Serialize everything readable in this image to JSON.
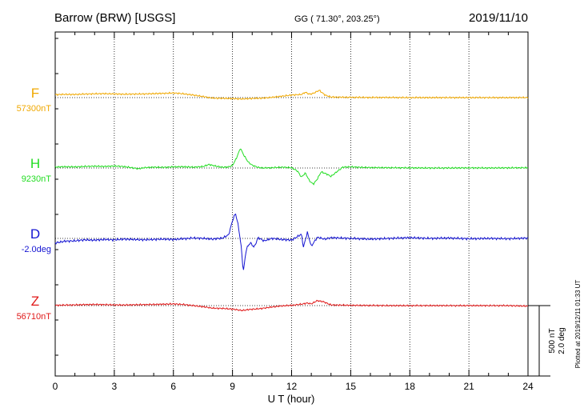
{
  "header": {
    "station": "Barrow (BRW)  [USGS]",
    "coords": "GG ( 71.30°, 203.25°)",
    "date": "2019/11/10"
  },
  "footer": {
    "plotted": "Plotted at 2019/12/11 01:33 UT",
    "scale_nt": "500 nT",
    "scale_deg": "2.0 deg"
  },
  "chart_data": {
    "type": "line",
    "xlabel": "U T (hour)",
    "xlim": [
      0,
      24
    ],
    "xticks": [
      0,
      3,
      6,
      9,
      12,
      15,
      18,
      21,
      24
    ],
    "scale": {
      "nT_per_bar": 500,
      "deg_per_bar": 2.0
    },
    "grid": true,
    "colors": {
      "F": "#f0a800",
      "H": "#22dd22",
      "D": "#1414d2",
      "Z": "#e01818"
    },
    "series": [
      {
        "name": "F",
        "baseline_label": "57300nT",
        "unit": "nT",
        "baseline": 57300,
        "color": "#f0a800",
        "points": [
          [
            0,
            57321
          ],
          [
            0.5,
            57323
          ],
          [
            1,
            57322
          ],
          [
            1.5,
            57325
          ],
          [
            2,
            57327
          ],
          [
            2.5,
            57328
          ],
          [
            3,
            57326
          ],
          [
            3.5,
            57324
          ],
          [
            4,
            57325
          ],
          [
            4.5,
            57326
          ],
          [
            5,
            57328
          ],
          [
            5.5,
            57330
          ],
          [
            6,
            57333
          ],
          [
            6.5,
            57327
          ],
          [
            7,
            57318
          ],
          [
            7.5,
            57308
          ],
          [
            8,
            57296
          ],
          [
            8.5,
            57295
          ],
          [
            9,
            57293
          ],
          [
            9.5,
            57290
          ],
          [
            10,
            57294
          ],
          [
            10.5,
            57296
          ],
          [
            11,
            57302
          ],
          [
            11.5,
            57310
          ],
          [
            12,
            57318
          ],
          [
            12.5,
            57322
          ],
          [
            12.7,
            57338
          ],
          [
            12.9,
            57324
          ],
          [
            13.1,
            57330
          ],
          [
            13.4,
            57352
          ],
          [
            13.7,
            57318
          ],
          [
            14,
            57304
          ],
          [
            15,
            57302
          ],
          [
            16,
            57301
          ],
          [
            17,
            57301
          ],
          [
            18,
            57300
          ],
          [
            19,
            57300
          ],
          [
            20,
            57300
          ],
          [
            21,
            57300
          ],
          [
            22,
            57300
          ],
          [
            23,
            57300
          ],
          [
            24,
            57300
          ]
        ]
      },
      {
        "name": "H",
        "baseline_label": "9230nT",
        "unit": "nT",
        "baseline": 9230,
        "color": "#22dd22",
        "points": [
          [
            0,
            9237
          ],
          [
            0.5,
            9239
          ],
          [
            1,
            9238
          ],
          [
            1.5,
            9241
          ],
          [
            2,
            9243
          ],
          [
            2.5,
            9241
          ],
          [
            3,
            9244
          ],
          [
            3.5,
            9240
          ],
          [
            4,
            9230
          ],
          [
            4.2,
            9224
          ],
          [
            4.5,
            9232
          ],
          [
            5,
            9236
          ],
          [
            5.5,
            9235
          ],
          [
            6,
            9238
          ],
          [
            6.5,
            9239
          ],
          [
            7,
            9236
          ],
          [
            7.5,
            9240
          ],
          [
            7.8,
            9255
          ],
          [
            8.2,
            9242
          ],
          [
            8.5,
            9235
          ],
          [
            8.8,
            9238
          ],
          [
            9,
            9248
          ],
          [
            9.2,
            9300
          ],
          [
            9.4,
            9370
          ],
          [
            9.6,
            9315
          ],
          [
            9.8,
            9272
          ],
          [
            10,
            9250
          ],
          [
            10.3,
            9234
          ],
          [
            10.6,
            9230
          ],
          [
            11,
            9232
          ],
          [
            11.5,
            9236
          ],
          [
            12,
            9232
          ],
          [
            12.3,
            9208
          ],
          [
            12.5,
            9165
          ],
          [
            12.7,
            9195
          ],
          [
            12.9,
            9140
          ],
          [
            13.1,
            9115
          ],
          [
            13.3,
            9150
          ],
          [
            13.5,
            9203
          ],
          [
            13.8,
            9186
          ],
          [
            14,
            9170
          ],
          [
            14.3,
            9204
          ],
          [
            14.6,
            9236
          ],
          [
            15,
            9238
          ],
          [
            15.5,
            9235
          ],
          [
            16,
            9233
          ],
          [
            17,
            9232
          ],
          [
            18,
            9231
          ],
          [
            19,
            9230
          ],
          [
            20,
            9230
          ],
          [
            21,
            9231
          ],
          [
            22,
            9230
          ],
          [
            23,
            9231
          ],
          [
            24,
            9232
          ]
        ]
      },
      {
        "name": "D",
        "baseline_label": "-2.0deg",
        "unit": "deg",
        "baseline": -2.0,
        "color": "#1414d2",
        "points": [
          [
            0,
            -2.13
          ],
          [
            0.5,
            -2.08
          ],
          [
            1,
            -2.07
          ],
          [
            1.5,
            -2.04
          ],
          [
            2,
            -2.05
          ],
          [
            2.5,
            -2.03
          ],
          [
            3,
            -2.04
          ],
          [
            3.5,
            -2.02
          ],
          [
            4,
            -2.03
          ],
          [
            4.5,
            -2.04
          ],
          [
            5,
            -2.03
          ],
          [
            5.5,
            -2.02
          ],
          [
            6,
            -2.03
          ],
          [
            6.5,
            -2.01
          ],
          [
            7,
            -1.99
          ],
          [
            7.5,
            -2.0
          ],
          [
            8,
            -2.02
          ],
          [
            8.5,
            -1.99
          ],
          [
            8.8,
            -1.9
          ],
          [
            9,
            -1.5
          ],
          [
            9.15,
            -1.28
          ],
          [
            9.3,
            -1.65
          ],
          [
            9.45,
            -2.28
          ],
          [
            9.55,
            -2.95
          ],
          [
            9.7,
            -2.3
          ],
          [
            9.9,
            -2.12
          ],
          [
            10.1,
            -2.25
          ],
          [
            10.3,
            -1.98
          ],
          [
            10.6,
            -2.07
          ],
          [
            11,
            -2.0
          ],
          [
            11.5,
            -2.03
          ],
          [
            12,
            -2.05
          ],
          [
            12.5,
            -1.88
          ],
          [
            12.6,
            -2.25
          ],
          [
            12.8,
            -1.83
          ],
          [
            13,
            -2.22
          ],
          [
            13.3,
            -1.97
          ],
          [
            13.7,
            -2.02
          ],
          [
            14,
            -1.98
          ],
          [
            15,
            -2.0
          ],
          [
            16,
            -2.02
          ],
          [
            17,
            -2.0
          ],
          [
            18,
            -1.98
          ],
          [
            19,
            -2.0
          ],
          [
            20,
            -1.99
          ],
          [
            21,
            -2.01
          ],
          [
            22,
            -2.0
          ],
          [
            23,
            -2.01
          ],
          [
            24,
            -1.99
          ]
        ]
      },
      {
        "name": "Z",
        "baseline_label": "56710nT",
        "unit": "nT",
        "baseline": 56710,
        "color": "#e01818",
        "points": [
          [
            0,
            56712
          ],
          [
            0.5,
            56714
          ],
          [
            1,
            56715
          ],
          [
            1.5,
            56717
          ],
          [
            2,
            56718
          ],
          [
            2.5,
            56717
          ],
          [
            3,
            56715
          ],
          [
            3.5,
            56714
          ],
          [
            4,
            56716
          ],
          [
            4.5,
            56717
          ],
          [
            5,
            56718
          ],
          [
            5.5,
            56720
          ],
          [
            6,
            56722
          ],
          [
            6.5,
            56718
          ],
          [
            7,
            56710
          ],
          [
            7.5,
            56702
          ],
          [
            8,
            56692
          ],
          [
            8.5,
            56690
          ],
          [
            9,
            56685
          ],
          [
            9.5,
            56675
          ],
          [
            9.8,
            56682
          ],
          [
            10.2,
            56686
          ],
          [
            10.5,
            56690
          ],
          [
            11,
            56700
          ],
          [
            11.5,
            56708
          ],
          [
            12,
            56712
          ],
          [
            12.5,
            56720
          ],
          [
            12.8,
            56728
          ],
          [
            13,
            56722
          ],
          [
            13.3,
            56745
          ],
          [
            13.6,
            56738
          ],
          [
            14,
            56715
          ],
          [
            15,
            56712
          ],
          [
            16,
            56711
          ],
          [
            17,
            56710
          ],
          [
            18,
            56710
          ],
          [
            19,
            56710
          ],
          [
            20,
            56710
          ],
          [
            21,
            56710
          ],
          [
            22,
            56710
          ],
          [
            23,
            56710
          ],
          [
            24,
            56706
          ]
        ]
      }
    ]
  }
}
